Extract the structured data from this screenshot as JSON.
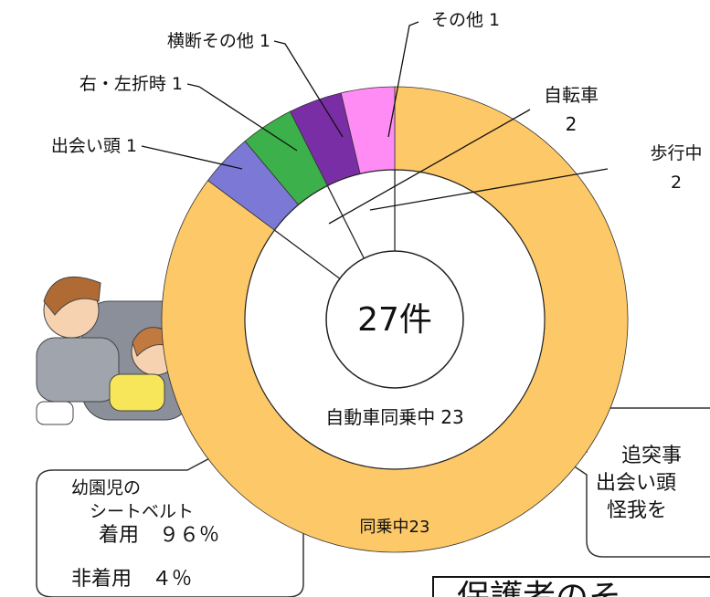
{
  "chart_data": {
    "type": "donut",
    "center_label": "27件",
    "outer": {
      "categories": [
        "同乗中",
        "出会い頭",
        "右・左折時",
        "横断その他",
        "その他"
      ],
      "values": [
        23,
        1,
        1,
        1,
        1
      ],
      "colors": [
        "#fdc867",
        "#7b78d6",
        "#3cb04a",
        "#7a2ea6",
        "#ff8cf5"
      ]
    },
    "inner": {
      "categories": [
        "自動車同乗中",
        "自転車",
        "歩行中"
      ],
      "values": [
        23,
        2,
        2
      ],
      "color": "#ffffff"
    }
  },
  "seatbelt_note": [
    "幼園児の",
    "シートベルト",
    "着用　９６％",
    "非着用　４％"
  ],
  "right_note": [
    "追突事",
    "出会い頭",
    "怪我を"
  ],
  "bottom_heading": "保護者のそ"
}
